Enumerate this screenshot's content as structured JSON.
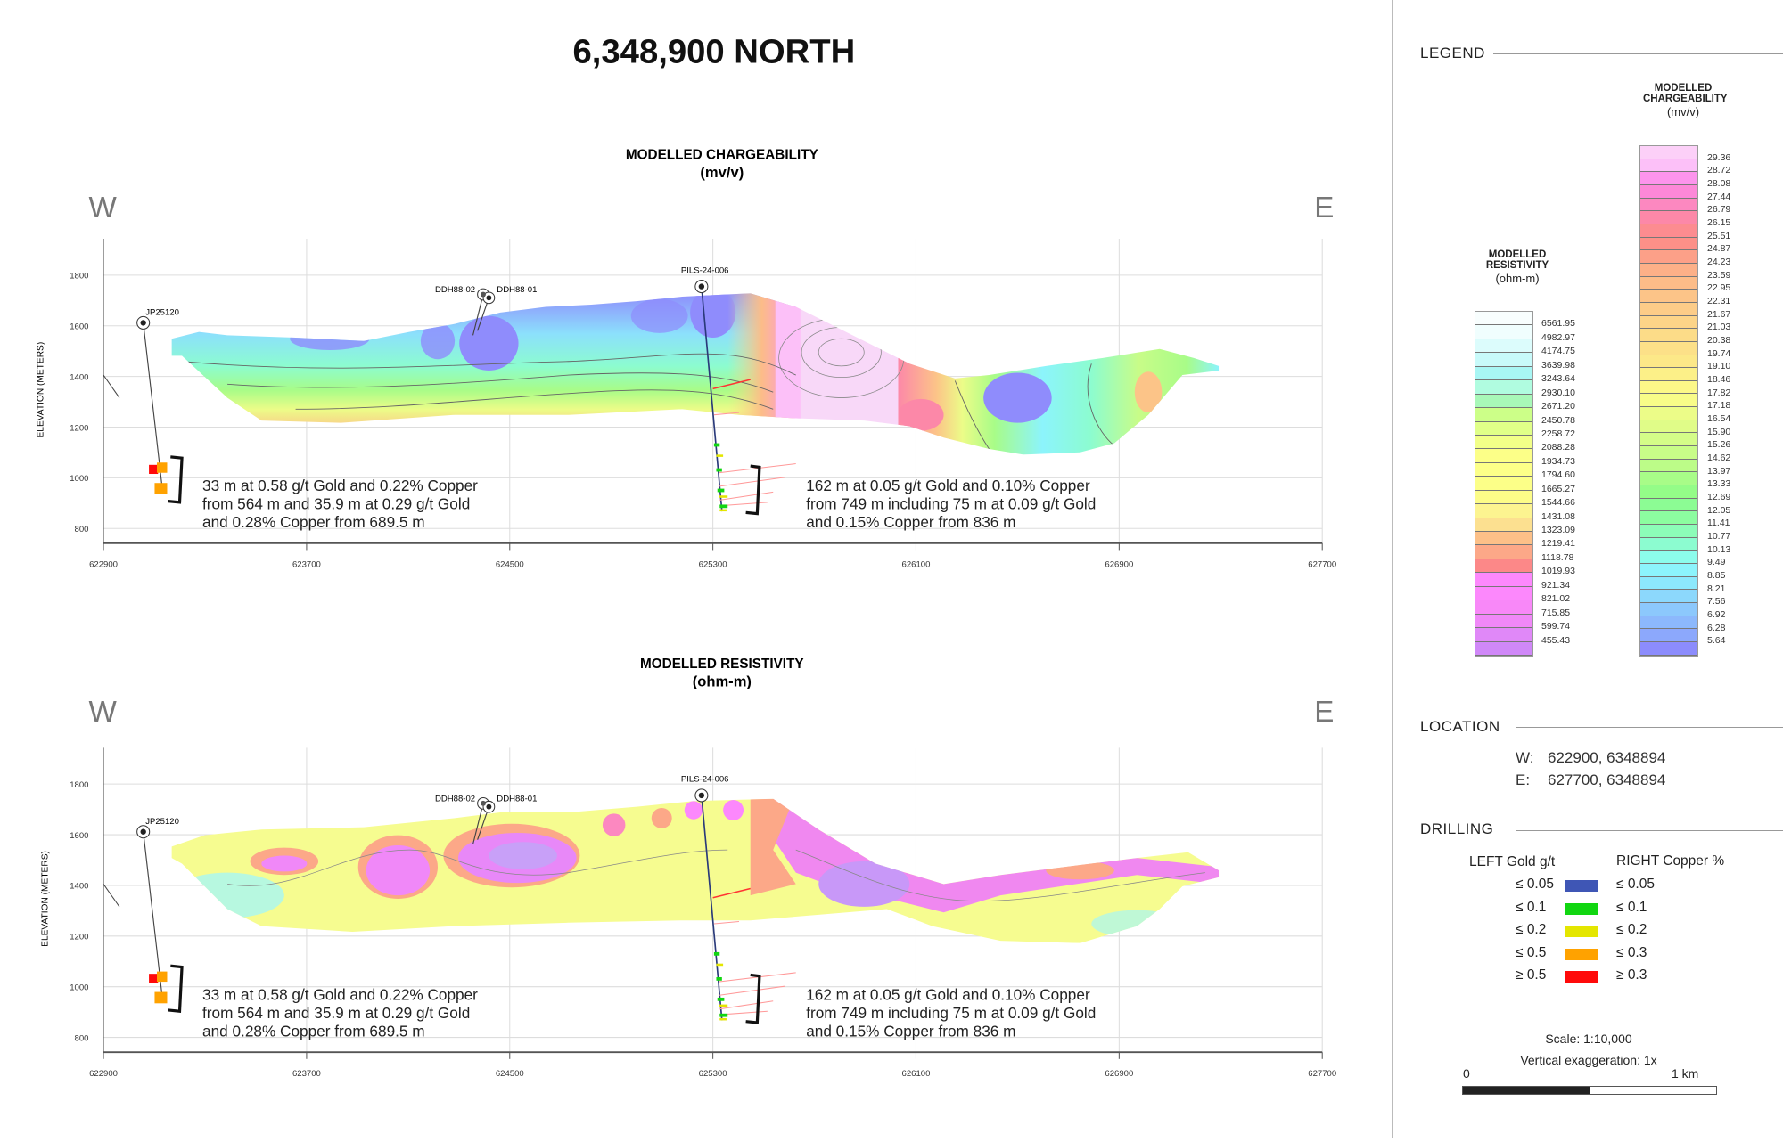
{
  "title": "6,348,900 NORTH",
  "sections": [
    {
      "title": "MODELLED CHARGEABILITY",
      "unit": "(mv/v)",
      "west": "W",
      "east": "E",
      "ylabel": "ELEVATION (METERS)"
    },
    {
      "title": "MODELLED RESISTIVITY",
      "unit": "(ohm-m)",
      "west": "W",
      "east": "E",
      "ylabel": "ELEVATION (METERS)"
    }
  ],
  "axes": {
    "x_ticks": [
      "622900",
      "623700",
      "624500",
      "625300",
      "626100",
      "626900",
      "627700"
    ],
    "x_range": [
      622900,
      627700
    ],
    "y_ticks": [
      "1800",
      "1600",
      "1400",
      "1200",
      "1000",
      "800"
    ],
    "y_range": [
      800,
      1800
    ]
  },
  "drillholes": {
    "jp": "JP25120",
    "ddh2": "DDH88-02",
    "ddh1": "DDH88-01",
    "pils": "PILS-24-006"
  },
  "annotations": {
    "left": [
      "33 m at 0.58 g/t Gold and 0.22% Copper",
      "from 564 m and 35.9 m at 0.29 g/t Gold",
      "and 0.28% Copper from 689.5 m"
    ],
    "right": [
      "162 m at 0.05 g/t Gold and 0.10% Copper",
      "from 749 m including 75 m at 0.09 g/t Gold",
      "and 0.15% Copper from 836 m"
    ]
  },
  "legend": {
    "heading": "LEGEND",
    "resistivity": {
      "title1": "MODELLED",
      "title2": "RESISTIVITY",
      "unit": "(ohm-m)",
      "labels": [
        "6561.95",
        "4982.97",
        "4174.75",
        "3639.98",
        "3243.64",
        "2930.10",
        "2671.20",
        "2450.78",
        "2258.72",
        "2088.28",
        "1934.73",
        "1794.60",
        "1665.27",
        "1544.66",
        "1431.08",
        "1323.09",
        "1219.41",
        "1118.78",
        "1019.93",
        "921.34",
        "821.02",
        "715.85",
        "599.74",
        "455.43"
      ],
      "colors": [
        "#f8fefe",
        "#f0fefe",
        "#dcfcfc",
        "#c8fafa",
        "#a8f6f4",
        "#b0fce0",
        "#a8f8b8",
        "#ccff88",
        "#e0ff88",
        "#f2ff88",
        "#fcff88",
        "#fcff88",
        "#fcff88",
        "#fcfc88",
        "#fcf490",
        "#fce090",
        "#fcc088",
        "#fca888",
        "#fc8888",
        "#fc88fc",
        "#fc88fc",
        "#f888f8",
        "#f088f8",
        "#e088f8",
        "#d088f8"
      ]
    },
    "chargeability": {
      "title1": "MODELLED",
      "title2": "CHARGEABILITY",
      "unit": "(mv/v)",
      "labels": [
        "29.36",
        "28.72",
        "28.08",
        "27.44",
        "26.79",
        "26.15",
        "25.51",
        "24.87",
        "24.23",
        "23.59",
        "22.95",
        "22.31",
        "21.67",
        "21.03",
        "20.38",
        "19.74",
        "19.10",
        "18.46",
        "17.82",
        "17.18",
        "16.54",
        "15.90",
        "15.26",
        "14.62",
        "13.97",
        "13.33",
        "12.69",
        "12.05",
        "11.41",
        "10.77",
        "10.13",
        "9.49",
        "8.85",
        "8.21",
        "7.56",
        "6.92",
        "6.28",
        "5.64"
      ],
      "colors": [
        "#fcd0f8",
        "#fcc0f8",
        "#fc94ec",
        "#fc88d8",
        "#fc88c0",
        "#fc88a8",
        "#fc8c90",
        "#fc9088",
        "#fca088",
        "#fcb088",
        "#fcbc88",
        "#fcc488",
        "#fccc88",
        "#fcd488",
        "#fcdc88",
        "#fce088",
        "#fce888",
        "#fcf088",
        "#fcf888",
        "#f8fc88",
        "#ecfc88",
        "#e0fc88",
        "#d4fc88",
        "#c8fc88",
        "#bcfc88",
        "#a8fc88",
        "#94fc88",
        "#8cfc94",
        "#8cfca0",
        "#8cfcb8",
        "#8cfcd0",
        "#8cfcec",
        "#8cf4fc",
        "#8ce8fc",
        "#8cd8fc",
        "#8cc8fc",
        "#8cb8fc",
        "#8ca8fc",
        "#8c8cfc"
      ]
    }
  },
  "location": {
    "heading": "LOCATION",
    "w_label": "W:",
    "w_value": "622900, 6348894",
    "e_label": "E:",
    "e_value": "627700, 6348894"
  },
  "drilling": {
    "heading": "DRILLING",
    "left_header": "LEFT Gold g/t",
    "right_header": "RIGHT Copper %",
    "rows": [
      {
        "gold": "≤ 0.05",
        "color": "#3f56b5",
        "copper": "≤ 0.05"
      },
      {
        "gold": "≤ 0.1",
        "color": "#11d611",
        "copper": "≤ 0.1"
      },
      {
        "gold": "≤ 0.2",
        "color": "#e4e600",
        "copper": "≤ 0.2"
      },
      {
        "gold": "≤ 0.5",
        "color": "#ffa200",
        "copper": "≤ 0.3"
      },
      {
        "gold": "≥ 0.5",
        "color": "#ff0a0a",
        "copper": "≥ 0.3"
      }
    ]
  },
  "scale": {
    "text": "Scale: 1:10,000",
    "vex": "Vertical exaggeration: 1x",
    "zero": "0",
    "end": "1 km",
    "filled_fraction": 0.5
  }
}
